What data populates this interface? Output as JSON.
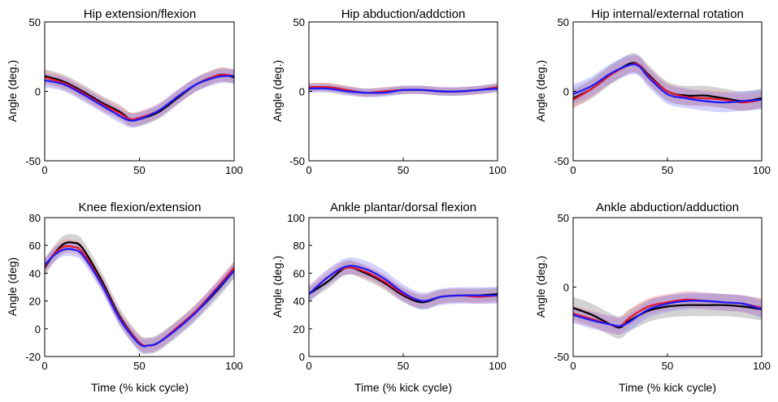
{
  "figure": {
    "series_colors": {
      "black": "#000000",
      "red": "#e8142a",
      "blue": "#1a1aff"
    },
    "band_colors": {
      "black": "#808080",
      "red": "#ff7f7f",
      "blue": "#8080ff"
    }
  },
  "chart_data": [
    {
      "type": "line",
      "title": "Hip extension/flexion",
      "xlabel": "",
      "ylabel": "Angle (deg.)",
      "xlim": [
        0,
        100
      ],
      "ylim": [
        -50,
        50
      ],
      "xticks": [
        "0",
        "50",
        "100"
      ],
      "yticks": [
        "-50",
        "0",
        "50"
      ],
      "x": [
        0,
        10,
        20,
        30,
        40,
        45,
        50,
        60,
        70,
        80,
        90,
        95,
        100
      ],
      "series": [
        {
          "name": "black",
          "values": [
            11,
            7,
            0,
            -8,
            -15,
            -20,
            -20,
            -15,
            -5,
            5,
            11,
            12,
            10
          ],
          "band": 5
        },
        {
          "name": "red",
          "values": [
            10,
            6,
            -1,
            -9,
            -16,
            -20,
            -19,
            -14,
            -4,
            5,
            11,
            12,
            11
          ],
          "band": 5
        },
        {
          "name": "blue",
          "values": [
            8,
            5,
            -2,
            -10,
            -18,
            -21,
            -20,
            -14,
            -4,
            5,
            10,
            11,
            11
          ],
          "band": 5
        }
      ]
    },
    {
      "type": "line",
      "title": "Hip abduction/addction",
      "xlabel": "",
      "ylabel": "Angle (deg.)",
      "xlim": [
        0,
        100
      ],
      "ylim": [
        -50,
        50
      ],
      "xticks": [
        "0",
        "50",
        "100"
      ],
      "yticks": [
        "-50",
        "0",
        "50"
      ],
      "x": [
        0,
        10,
        20,
        30,
        40,
        50,
        60,
        70,
        80,
        90,
        100
      ],
      "series": [
        {
          "name": "black",
          "values": [
            3,
            3,
            1,
            -1,
            0,
            1,
            1,
            0,
            0,
            1,
            3
          ],
          "band": 3
        },
        {
          "name": "red",
          "values": [
            3,
            3,
            1,
            -1,
            0,
            1,
            1,
            0,
            0,
            1,
            3
          ],
          "band": 3
        },
        {
          "name": "blue",
          "values": [
            2,
            2,
            0,
            -1,
            -1,
            1,
            1,
            0,
            0,
            1,
            2
          ],
          "band": 3
        }
      ]
    },
    {
      "type": "line",
      "title": "Hip internal/external rotation",
      "xlabel": "",
      "ylabel": "Angle (deg.)",
      "xlim": [
        0,
        100
      ],
      "ylim": [
        -50,
        50
      ],
      "xticks": [
        "0",
        "50",
        "100"
      ],
      "yticks": [
        "-50",
        "0",
        "50"
      ],
      "x": [
        0,
        10,
        20,
        30,
        35,
        40,
        50,
        60,
        70,
        80,
        90,
        100
      ],
      "series": [
        {
          "name": "black",
          "values": [
            -5,
            2,
            12,
            20,
            19,
            12,
            0,
            -3,
            -3,
            -5,
            -7,
            -5
          ],
          "band": 7
        },
        {
          "name": "red",
          "values": [
            -6,
            2,
            12,
            19,
            19,
            11,
            0,
            -4,
            -5,
            -6,
            -8,
            -6
          ],
          "band": 6
        },
        {
          "name": "blue",
          "values": [
            -2,
            4,
            13,
            19,
            18,
            10,
            -2,
            -5,
            -7,
            -8,
            -7,
            -6
          ],
          "band": 7
        }
      ]
    },
    {
      "type": "line",
      "title": "Knee flexion/extension",
      "xlabel": "Time (% kick cycle)",
      "ylabel": "Angle (deg)",
      "xlim": [
        0,
        100
      ],
      "ylim": [
        -20,
        80
      ],
      "xticks": [
        "0",
        "50",
        "100"
      ],
      "yticks": [
        "-20",
        "0",
        "20",
        "40",
        "60",
        "80"
      ],
      "x": [
        0,
        5,
        10,
        15,
        20,
        30,
        40,
        50,
        55,
        60,
        70,
        80,
        90,
        100
      ],
      "series": [
        {
          "name": "black",
          "values": [
            44,
            54,
            61,
            62,
            58,
            35,
            8,
            -10,
            -12,
            -10,
            0,
            12,
            26,
            42
          ],
          "band": 6
        },
        {
          "name": "red",
          "values": [
            45,
            54,
            59,
            59,
            55,
            33,
            7,
            -10,
            -12,
            -10,
            1,
            13,
            28,
            44
          ],
          "band": 5
        },
        {
          "name": "blue",
          "values": [
            46,
            53,
            57,
            57,
            53,
            32,
            6,
            -11,
            -12,
            -10,
            0,
            12,
            27,
            42
          ],
          "band": 5
        }
      ]
    },
    {
      "type": "line",
      "title": "Ankle plantar/dorsal flexion",
      "xlabel": "Time (% kick cycle)",
      "ylabel": "Angle (deg.)",
      "xlim": [
        0,
        100
      ],
      "ylim": [
        0,
        100
      ],
      "xticks": [
        "0",
        "50",
        "100"
      ],
      "yticks": [
        "0",
        "20",
        "40",
        "60",
        "80",
        "100"
      ],
      "x": [
        0,
        10,
        20,
        30,
        40,
        50,
        60,
        70,
        80,
        90,
        100
      ],
      "series": [
        {
          "name": "black",
          "values": [
            45,
            54,
            64,
            60,
            53,
            44,
            39,
            43,
            44,
            44,
            45
          ],
          "band": 5
        },
        {
          "name": "red",
          "values": [
            45,
            57,
            64,
            61,
            54,
            45,
            40,
            43,
            44,
            43,
            44
          ],
          "band": 5
        },
        {
          "name": "blue",
          "values": [
            45,
            57,
            65,
            63,
            56,
            46,
            40,
            43,
            44,
            44,
            44
          ],
          "band": 6
        }
      ]
    },
    {
      "type": "line",
      "title": "Ankle abduction/adduction",
      "xlabel": "Time (% kick cycle)",
      "ylabel": "Angle (deg.)",
      "xlim": [
        0,
        100
      ],
      "ylim": [
        -50,
        50
      ],
      "xticks": [
        "0",
        "50",
        "100"
      ],
      "yticks": [
        "-50",
        "0",
        "50"
      ],
      "x": [
        0,
        10,
        20,
        25,
        30,
        40,
        50,
        60,
        70,
        80,
        90,
        100
      ],
      "series": [
        {
          "name": "black",
          "values": [
            -15,
            -20,
            -27,
            -29,
            -24,
            -17,
            -14,
            -13,
            -13,
            -13,
            -14,
            -16
          ],
          "band": 8
        },
        {
          "name": "red",
          "values": [
            -19,
            -23,
            -27,
            -28,
            -22,
            -14,
            -11,
            -9,
            -10,
            -11,
            -12,
            -15
          ],
          "band": 6
        },
        {
          "name": "blue",
          "values": [
            -20,
            -24,
            -27,
            -28,
            -25,
            -16,
            -12,
            -10,
            -10,
            -11,
            -12,
            -16
          ],
          "band": 6
        }
      ]
    }
  ]
}
